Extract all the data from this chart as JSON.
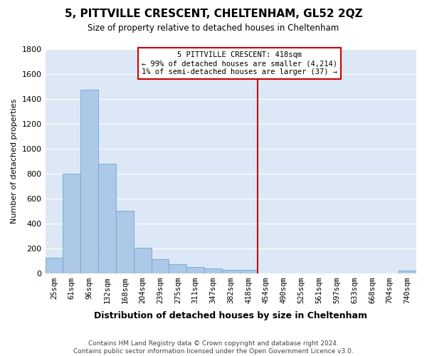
{
  "title": "5, PITTVILLE CRESCENT, CHELTENHAM, GL52 2QZ",
  "subtitle": "Size of property relative to detached houses in Cheltenham",
  "xlabel": "Distribution of detached houses by size in Cheltenham",
  "ylabel": "Number of detached properties",
  "footer_line1": "Contains HM Land Registry data © Crown copyright and database right 2024.",
  "footer_line2": "Contains public sector information licensed under the Open Government Licence v3.0.",
  "categories": [
    "25sqm",
    "61sqm",
    "96sqm",
    "132sqm",
    "168sqm",
    "204sqm",
    "239sqm",
    "275sqm",
    "311sqm",
    "347sqm",
    "382sqm",
    "418sqm",
    "454sqm",
    "490sqm",
    "525sqm",
    "561sqm",
    "597sqm",
    "633sqm",
    "668sqm",
    "704sqm",
    "740sqm"
  ],
  "values": [
    125,
    800,
    1475,
    880,
    500,
    205,
    110,
    70,
    50,
    35,
    28,
    28,
    0,
    0,
    0,
    0,
    0,
    0,
    0,
    0,
    18
  ],
  "bar_color": "#aec8e8",
  "bar_edge_color": "#6aaad4",
  "plot_bg_color": "#dce8f5",
  "fig_bg_color": "#ffffff",
  "grid_color": "#ffffff",
  "annotation_box_text": "5 PITTVILLE CRESCENT: 418sqm\n← 99% of detached houses are smaller (4,214)\n1% of semi-detached houses are larger (37) →",
  "vline_index": 11,
  "vline_color": "#cc0000",
  "annotation_box_color": "#cc0000",
  "ylim": [
    0,
    1800
  ],
  "yticks": [
    0,
    200,
    400,
    600,
    800,
    1000,
    1200,
    1400,
    1600,
    1800
  ]
}
